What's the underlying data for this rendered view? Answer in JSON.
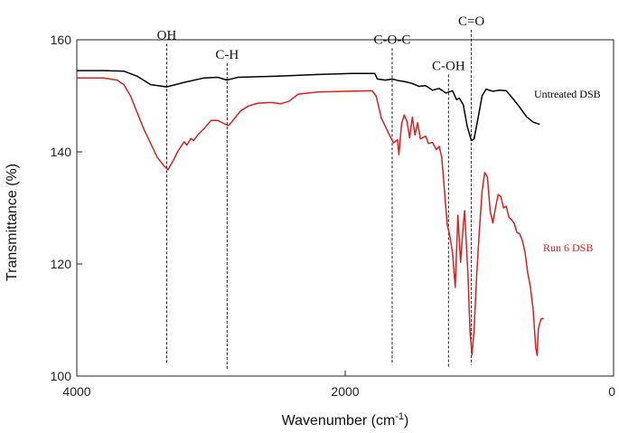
{
  "chart_data": {
    "type": "line",
    "title": "",
    "xlabel": "Wavenumber (cm",
    "xlabel_sup": "-1",
    "xlabel_tail": ")",
    "ylabel": "Transmittance (%)",
    "xlim": [
      4000,
      0
    ],
    "ylim": [
      100,
      160
    ],
    "xticks": [
      4000,
      2000,
      0
    ],
    "yticks": [
      100,
      120,
      140,
      160
    ],
    "grid": false,
    "legend": "inline labels at right",
    "series": [
      {
        "name": "Untreated DSB",
        "color": "#000000",
        "points": [
          [
            4000,
            154.5
          ],
          [
            3800,
            154.5
          ],
          [
            3650,
            154.4
          ],
          [
            3550,
            153.5
          ],
          [
            3450,
            152
          ],
          [
            3330,
            151.6
          ],
          [
            3200,
            152.4
          ],
          [
            3050,
            153.2
          ],
          [
            2950,
            153.3
          ],
          [
            2880,
            152.8
          ],
          [
            2800,
            153.3
          ],
          [
            2500,
            153.5
          ],
          [
            2200,
            153.8
          ],
          [
            1950,
            154
          ],
          [
            1780,
            154
          ],
          [
            1760,
            153
          ],
          [
            1700,
            152.8
          ],
          [
            1650,
            153
          ],
          [
            1600,
            152.7
          ],
          [
            1550,
            152.5
          ],
          [
            1500,
            152.2
          ],
          [
            1450,
            151.7
          ],
          [
            1400,
            151.8
          ],
          [
            1350,
            151
          ],
          [
            1300,
            151.3
          ],
          [
            1250,
            150.5
          ],
          [
            1200,
            150.9
          ],
          [
            1170,
            149.3
          ],
          [
            1150,
            149.6
          ],
          [
            1120,
            148.4
          ],
          [
            1090,
            144.5
          ],
          [
            1060,
            142
          ],
          [
            1040,
            142.3
          ],
          [
            1010,
            146
          ],
          [
            980,
            150
          ],
          [
            950,
            151.2
          ],
          [
            900,
            150.8
          ],
          [
            850,
            151
          ],
          [
            800,
            150.9
          ],
          [
            750,
            149.5
          ],
          [
            700,
            148
          ],
          [
            650,
            146.3
          ],
          [
            600,
            145.3
          ],
          [
            550,
            144.9
          ]
        ]
      },
      {
        "name": "Run 6 DSB",
        "color": "#e01e1e",
        "points": [
          [
            4000,
            153.2
          ],
          [
            3800,
            153.2
          ],
          [
            3700,
            152.8
          ],
          [
            3650,
            152
          ],
          [
            3600,
            150
          ],
          [
            3550,
            147
          ],
          [
            3500,
            144
          ],
          [
            3450,
            141.5
          ],
          [
            3400,
            139
          ],
          [
            3350,
            137.5
          ],
          [
            3320,
            136.8
          ],
          [
            3280,
            138.5
          ],
          [
            3250,
            140
          ],
          [
            3200,
            141.8
          ],
          [
            3180,
            141.2
          ],
          [
            3150,
            142.4
          ],
          [
            3130,
            142
          ],
          [
            3100,
            143
          ],
          [
            3050,
            144.2
          ],
          [
            3000,
            145.6
          ],
          [
            2950,
            145.6
          ],
          [
            2900,
            145
          ],
          [
            2870,
            144.7
          ],
          [
            2840,
            145.5
          ],
          [
            2780,
            147.3
          ],
          [
            2720,
            148.2
          ],
          [
            2650,
            148.7
          ],
          [
            2550,
            148.8
          ],
          [
            2480,
            148.6
          ],
          [
            2420,
            149
          ],
          [
            2350,
            150.3
          ],
          [
            2200,
            150.7
          ],
          [
            2000,
            150.8
          ],
          [
            1800,
            150.9
          ],
          [
            1770,
            150
          ],
          [
            1730,
            146
          ],
          [
            1700,
            144.5
          ],
          [
            1670,
            143
          ],
          [
            1640,
            141.6
          ],
          [
            1610,
            142.2
          ],
          [
            1600,
            139.5
          ],
          [
            1580,
            145
          ],
          [
            1560,
            146.6
          ],
          [
            1540,
            145.5
          ],
          [
            1520,
            142.5
          ],
          [
            1500,
            146.2
          ],
          [
            1480,
            143
          ],
          [
            1460,
            145.2
          ],
          [
            1440,
            142.3
          ],
          [
            1400,
            142.8
          ],
          [
            1380,
            141.5
          ],
          [
            1350,
            141.7
          ],
          [
            1320,
            140.4
          ],
          [
            1300,
            141
          ],
          [
            1280,
            139
          ],
          [
            1260,
            133
          ],
          [
            1240,
            127
          ],
          [
            1220,
            125
          ],
          [
            1200,
            122
          ],
          [
            1180,
            115.8
          ],
          [
            1160,
            128.7
          ],
          [
            1140,
            120.3
          ],
          [
            1120,
            127
          ],
          [
            1110,
            129.5
          ],
          [
            1100,
            125
          ],
          [
            1085,
            118
          ],
          [
            1070,
            108
          ],
          [
            1055,
            103.8
          ],
          [
            1040,
            108
          ],
          [
            1020,
            118
          ],
          [
            1000,
            126
          ],
          [
            980,
            133
          ],
          [
            960,
            136.3
          ],
          [
            940,
            135.5
          ],
          [
            920,
            129.5
          ],
          [
            900,
            127.3
          ],
          [
            880,
            130
          ],
          [
            860,
            132.4
          ],
          [
            840,
            132
          ],
          [
            820,
            130
          ],
          [
            800,
            130.3
          ],
          [
            780,
            128.3
          ],
          [
            760,
            127.9
          ],
          [
            740,
            127.2
          ],
          [
            720,
            125.6
          ],
          [
            700,
            125.4
          ],
          [
            680,
            124.2
          ],
          [
            660,
            122.1
          ],
          [
            640,
            118.4
          ],
          [
            620,
            116
          ],
          [
            600,
            112
          ],
          [
            580,
            105
          ],
          [
            570,
            103.7
          ],
          [
            560,
            108.5
          ],
          [
            540,
            110.2
          ],
          [
            520,
            110.3
          ]
        ]
      }
    ],
    "annotations": [
      {
        "label": "OH",
        "x": 3330,
        "top": 159.3,
        "bottom": 102
      },
      {
        "label": "C-H",
        "x": 2880,
        "top": 155.8,
        "bottom": 101
      },
      {
        "label": "C-O-C",
        "x": 1650,
        "top": 158.5,
        "bottom": 102
      },
      {
        "label": "C-OH",
        "x": 1230,
        "top": 153.8,
        "bottom": 101.5
      },
      {
        "label": "C=O",
        "x": 1060,
        "top": 161.8,
        "bottom": 102
      }
    ]
  }
}
